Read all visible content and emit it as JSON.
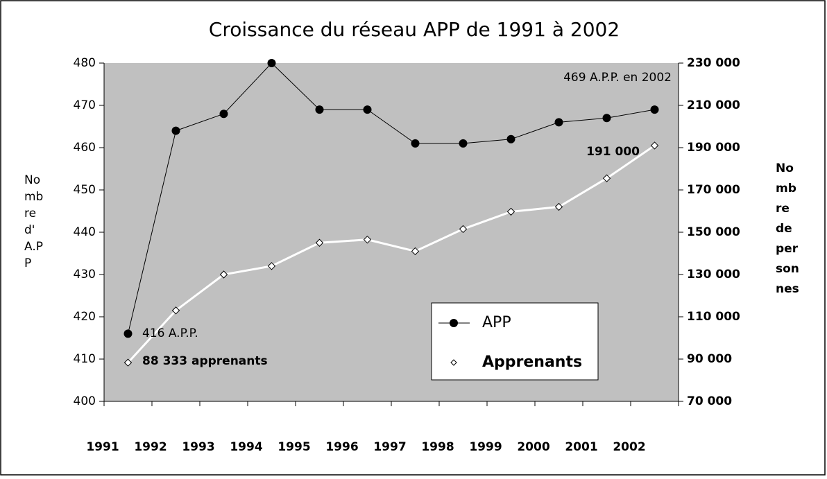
{
  "chart_data": {
    "type": "line",
    "title": "Croissance du réseau APP de 1991 à 2002",
    "categories": [
      "1991",
      "1992",
      "1993",
      "1994",
      "1995",
      "1996",
      "1997",
      "1998",
      "1999",
      "2000",
      "2001",
      "2002"
    ],
    "series": [
      {
        "name": "APP",
        "color": "#000000",
        "values": [
          416,
          464,
          468,
          480,
          469,
          469,
          461,
          461,
          462,
          466,
          467,
          469
        ]
      },
      {
        "name": "Apprenants",
        "color": "#ffffff",
        "axis": "y2",
        "values": [
          88333,
          113000,
          130000,
          134000,
          145000,
          146500,
          141000,
          151500,
          159700,
          162000,
          175500,
          191000
        ]
      }
    ],
    "ylim": [
      400,
      480
    ],
    "yticks": [
      400,
      410,
      420,
      430,
      440,
      450,
      460,
      470,
      480
    ],
    "y2lim": [
      70000,
      230000
    ],
    "y2ticks": [
      {
        "value": 70000,
        "label": "70 000"
      },
      {
        "value": 90000,
        "label": "90 000"
      },
      {
        "value": 110000,
        "label": "110 000"
      },
      {
        "value": 130000,
        "label": "130 000"
      },
      {
        "value": 150000,
        "label": "150 000"
      },
      {
        "value": 170000,
        "label": "170 000"
      },
      {
        "value": 190000,
        "label": "190 000"
      },
      {
        "value": 210000,
        "label": "210 000"
      },
      {
        "value": 230000,
        "label": "230 000"
      }
    ],
    "ylabel": [
      "No",
      "mb",
      "re",
      "d'",
      "A.P",
      "P"
    ],
    "y2label": [
      "No",
      "mb",
      "re",
      "de",
      "per",
      "son",
      "nes"
    ],
    "annotations": [
      "469 A.P.P. en 2002",
      "416 A.P.P.",
      "88 333 apprenants",
      "191 000"
    ],
    "legend": "bottom-right",
    "plot_background": "#c0c0c0"
  }
}
